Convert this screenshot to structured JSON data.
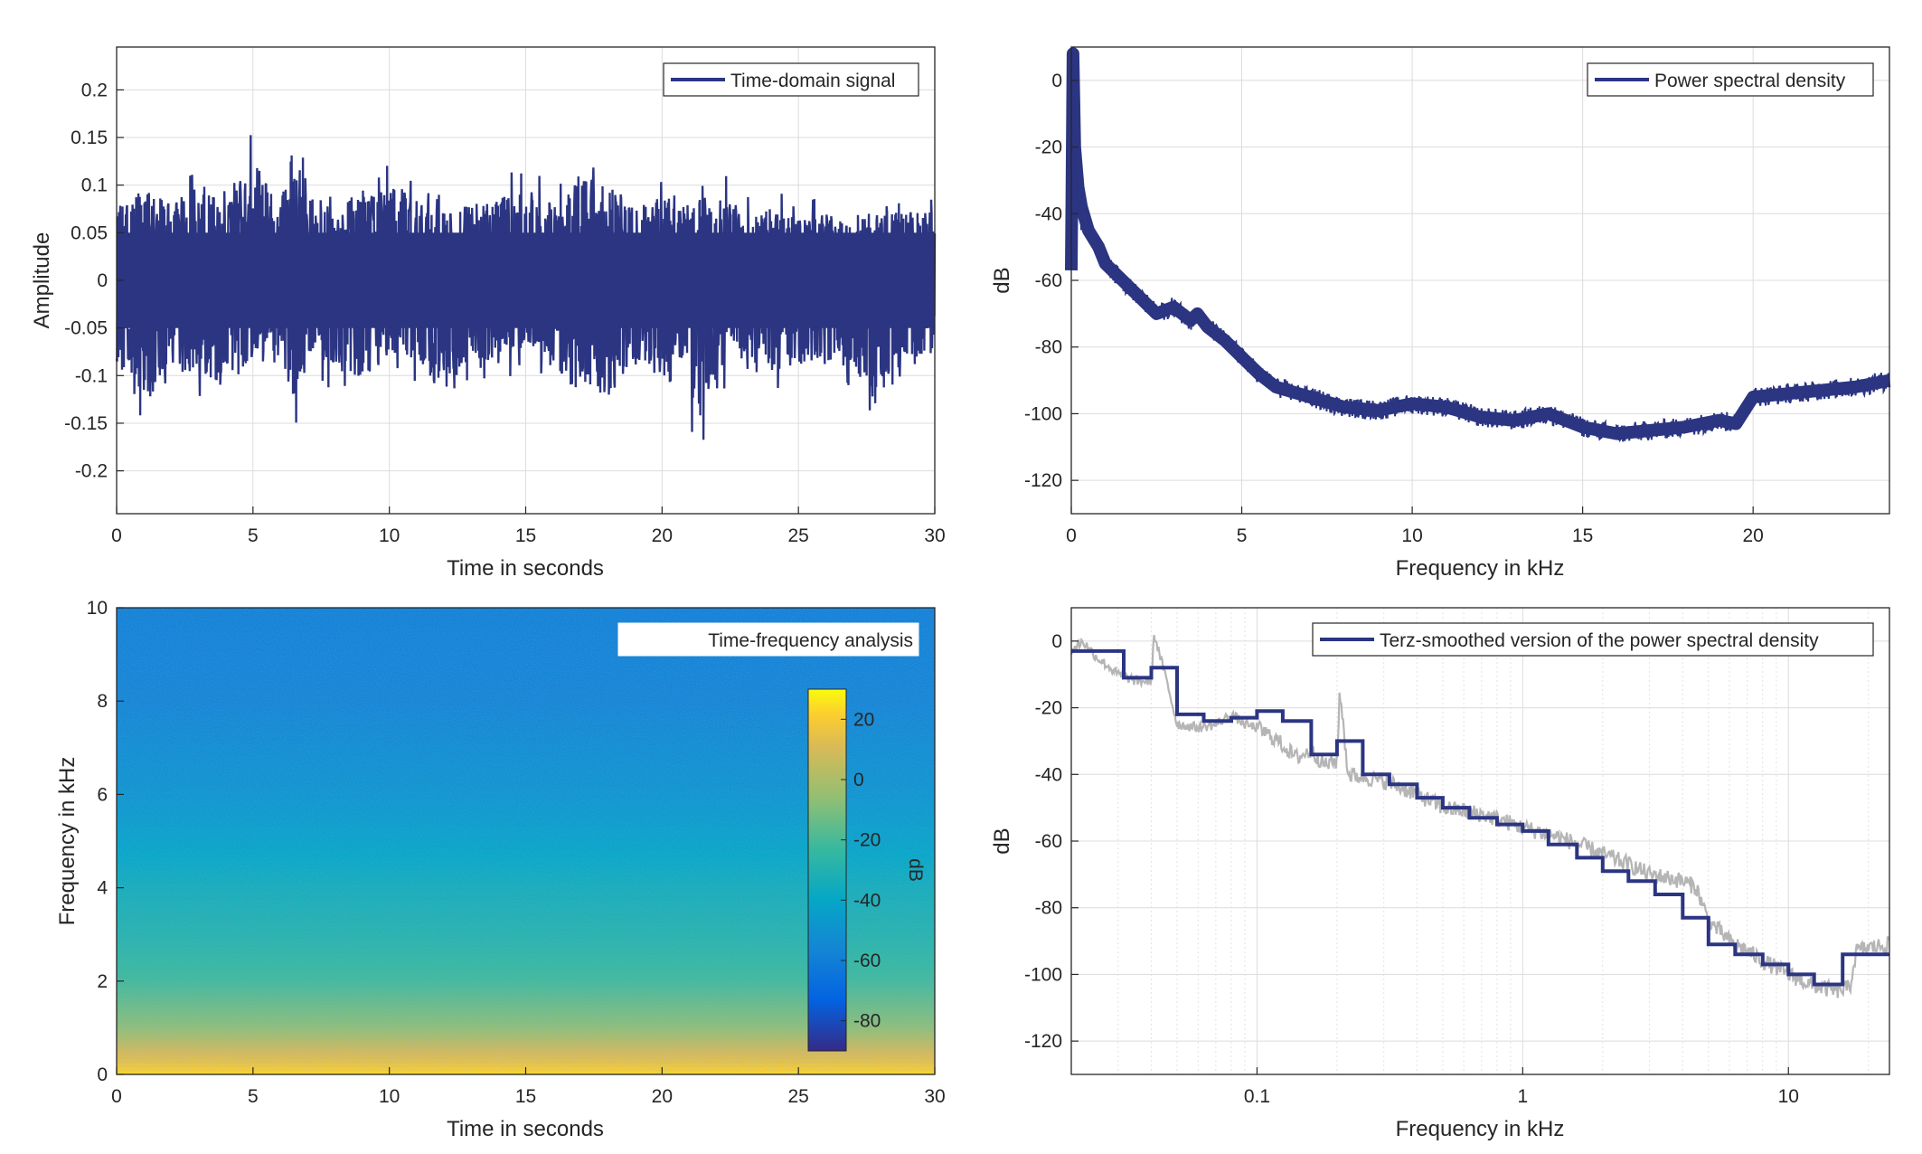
{
  "colors": {
    "series": "#2b3582",
    "smooth_raw": "#b5b5b5",
    "grid": "#dcdcdc",
    "axis": "#262626"
  },
  "chart_data": [
    {
      "type": "line",
      "legend": [
        "Time-domain signal"
      ],
      "legend_position": "top-right",
      "xlabel": "Time in seconds",
      "ylabel": "Amplitude",
      "xlim": [
        0,
        30
      ],
      "ylim": [
        -0.245,
        0.245
      ],
      "xticks": [
        0,
        5,
        10,
        15,
        20,
        25,
        30
      ],
      "xtick_labels": [
        "0",
        "5",
        "10",
        "15",
        "20",
        "25",
        "30"
      ],
      "yticks": [
        0.2,
        0.15,
        0.1,
        0.05,
        0,
        -0.05,
        -0.1,
        -0.15,
        -0.2
      ],
      "ytick_labels": [
        "0.2",
        "0.15",
        "0.1",
        "0.05",
        "0",
        "-0.05",
        "-0.1",
        "-0.15",
        "-0.2"
      ],
      "grid": true,
      "series": [
        {
          "name": "Time-domain signal",
          "description_range": [
            -0.2,
            0.18
          ]
        }
      ],
      "envelope": {
        "x": [
          0,
          1,
          2,
          3,
          4,
          5,
          6,
          6.5,
          7,
          8,
          9,
          10,
          11,
          12,
          13,
          14,
          15,
          16,
          17,
          18,
          19,
          20,
          21,
          21.1,
          22,
          23,
          24,
          25,
          26,
          27,
          28,
          29,
          30
        ],
        "upper": [
          0.1,
          0.12,
          0.1,
          0.13,
          0.1,
          0.16,
          0.1,
          0.183,
          0.11,
          0.1,
          0.12,
          0.13,
          0.11,
          0.09,
          0.1,
          0.11,
          0.12,
          0.1,
          0.14,
          0.13,
          0.1,
          0.11,
          0.12,
          0.1,
          0.12,
          0.09,
          0.1,
          0.08,
          0.09,
          0.07,
          0.1,
          0.09,
          0.09
        ],
        "lower": [
          -0.13,
          -0.16,
          -0.13,
          -0.12,
          -0.15,
          -0.1,
          -0.1,
          -0.16,
          -0.1,
          -0.12,
          -0.13,
          -0.1,
          -0.11,
          -0.15,
          -0.1,
          -0.11,
          -0.09,
          -0.12,
          -0.13,
          -0.16,
          -0.1,
          -0.13,
          -0.1,
          -0.202,
          -0.13,
          -0.1,
          -0.12,
          -0.11,
          -0.11,
          -0.12,
          -0.15,
          -0.1,
          -0.1
        ]
      }
    },
    {
      "type": "line",
      "legend": [
        "Power spectral density"
      ],
      "legend_position": "top-right",
      "xlabel": "Frequency in kHz",
      "ylabel": "dB",
      "xlim": [
        0,
        24
      ],
      "ylim": [
        -130,
        10
      ],
      "xticks": [
        0,
        5,
        10,
        15,
        20
      ],
      "xtick_labels": [
        "0",
        "5",
        "10",
        "15",
        "20"
      ],
      "yticks": [
        0,
        -20,
        -40,
        -60,
        -80,
        -100,
        -120
      ],
      "ytick_labels": [
        "0",
        "-20",
        "-40",
        "-60",
        "-80",
        "-100",
        "-120"
      ],
      "grid": true,
      "series": [
        {
          "name": "Power spectral density",
          "x": [
            0,
            0.05,
            0.1,
            0.2,
            0.3,
            0.5,
            0.8,
            1,
            1.5,
            2,
            2.5,
            3,
            3.5,
            3.7,
            4,
            4.5,
            5,
            5.5,
            6,
            7,
            8,
            9,
            10,
            11,
            12,
            13,
            14,
            15,
            16,
            17,
            18,
            19,
            19.5,
            20,
            21,
            22,
            23,
            24
          ],
          "y": [
            -57,
            8,
            -20,
            -32,
            -38,
            -45,
            -50,
            -55,
            -60,
            -65,
            -70,
            -68,
            -72,
            -70,
            -74,
            -78,
            -83,
            -88,
            -92,
            -95,
            -98,
            -99,
            -97,
            -98,
            -101,
            -102,
            -100,
            -104,
            -106,
            -105,
            -104,
            -102,
            -103,
            -95,
            -94,
            -93,
            -92,
            -90
          ],
          "band_width": 6
        }
      ]
    },
    {
      "type": "heatmap",
      "legend": [
        "Time-frequency analysis"
      ],
      "legend_position": "top-right",
      "xlabel": "Time in seconds",
      "ylabel": "Frequency in kHz",
      "xlim": [
        0,
        30
      ],
      "ylim": [
        0,
        10
      ],
      "xticks": [
        0,
        5,
        10,
        15,
        20,
        25,
        30
      ],
      "xtick_labels": [
        "0",
        "5",
        "10",
        "15",
        "20",
        "25",
        "30"
      ],
      "yticks": [
        0,
        2,
        4,
        6,
        8,
        10
      ],
      "ytick_labels": [
        "0",
        "2",
        "4",
        "6",
        "8",
        "10"
      ],
      "colorbar": {
        "label": "dB",
        "range": [
          -90,
          30
        ],
        "ticks": [
          20,
          0,
          -20,
          -40,
          -60,
          -80
        ],
        "tick_labels": [
          "20",
          "0",
          "-20",
          "-40",
          "-60",
          "-80"
        ],
        "colormap": "parula"
      },
      "level_profile": {
        "freq_khz": [
          0,
          0.3,
          1,
          2,
          3,
          4,
          5,
          6,
          8,
          10
        ],
        "db": [
          20,
          5,
          -15,
          -28,
          -35,
          -40,
          -47,
          -53,
          -60,
          -62
        ]
      }
    },
    {
      "type": "line",
      "legend": [
        "Terz-smoothed version of the power spectral density"
      ],
      "legend_position": "top-right",
      "xlabel": "Frequency in kHz",
      "ylabel": "dB",
      "xscale": "log",
      "xlim": [
        0.02,
        24
      ],
      "ylim": [
        -130,
        10
      ],
      "xticks": [
        0.1,
        1,
        10
      ],
      "xtick_labels": [
        "0.1",
        "1",
        "10"
      ],
      "yticks": [
        0,
        -20,
        -40,
        -60,
        -80,
        -100,
        -120
      ],
      "ytick_labels": [
        "0",
        "-20",
        "-40",
        "-60",
        "-80",
        "-100",
        "-120"
      ],
      "grid": true,
      "series": [
        {
          "name": "Terz-smoothed version of the power spectral density",
          "step": true,
          "x": [
            0.02,
            0.025,
            0.0315,
            0.04,
            0.05,
            0.063,
            0.08,
            0.1,
            0.125,
            0.16,
            0.2,
            0.25,
            0.315,
            0.4,
            0.5,
            0.63,
            0.8,
            1,
            1.25,
            1.6,
            2,
            2.5,
            3.15,
            4,
            5,
            6.3,
            8,
            10,
            12.5,
            16,
            20
          ],
          "y": [
            -3,
            -3,
            -11,
            -8,
            -22,
            -24,
            -23,
            -21,
            -24,
            -34,
            -30,
            -40,
            -43,
            -47,
            -50,
            -53,
            -55,
            -57,
            -61,
            -65,
            -69,
            -72,
            -76,
            -83,
            -91,
            -94,
            -97,
            -100,
            -103,
            -94,
            -94
          ]
        },
        {
          "x": [
            0.02,
            0.022,
            0.025,
            0.03,
            0.035,
            0.04,
            0.041,
            0.045,
            0.05,
            0.06,
            0.07,
            0.08,
            0.09,
            0.1,
            0.12,
            0.14,
            0.16,
            0.18,
            0.2,
            0.205,
            0.22,
            0.3,
            0.4,
            0.5,
            0.7,
            1,
            1.5,
            2,
            3,
            4,
            4.5,
            5,
            6,
            8,
            10,
            12,
            15,
            17,
            18,
            20,
            24
          ],
          "y": [
            -3,
            0,
            -5,
            -10,
            -12,
            -12,
            2,
            -10,
            -25,
            -26,
            -25,
            -22,
            -25,
            -26,
            -30,
            -35,
            -33,
            -37,
            -36,
            -15,
            -40,
            -42,
            -46,
            -50,
            -52,
            -56,
            -60,
            -64,
            -70,
            -72,
            -74,
            -84,
            -90,
            -96,
            -100,
            -103,
            -105,
            -104,
            -93,
            -92,
            -91
          ]
        }
      ]
    }
  ]
}
